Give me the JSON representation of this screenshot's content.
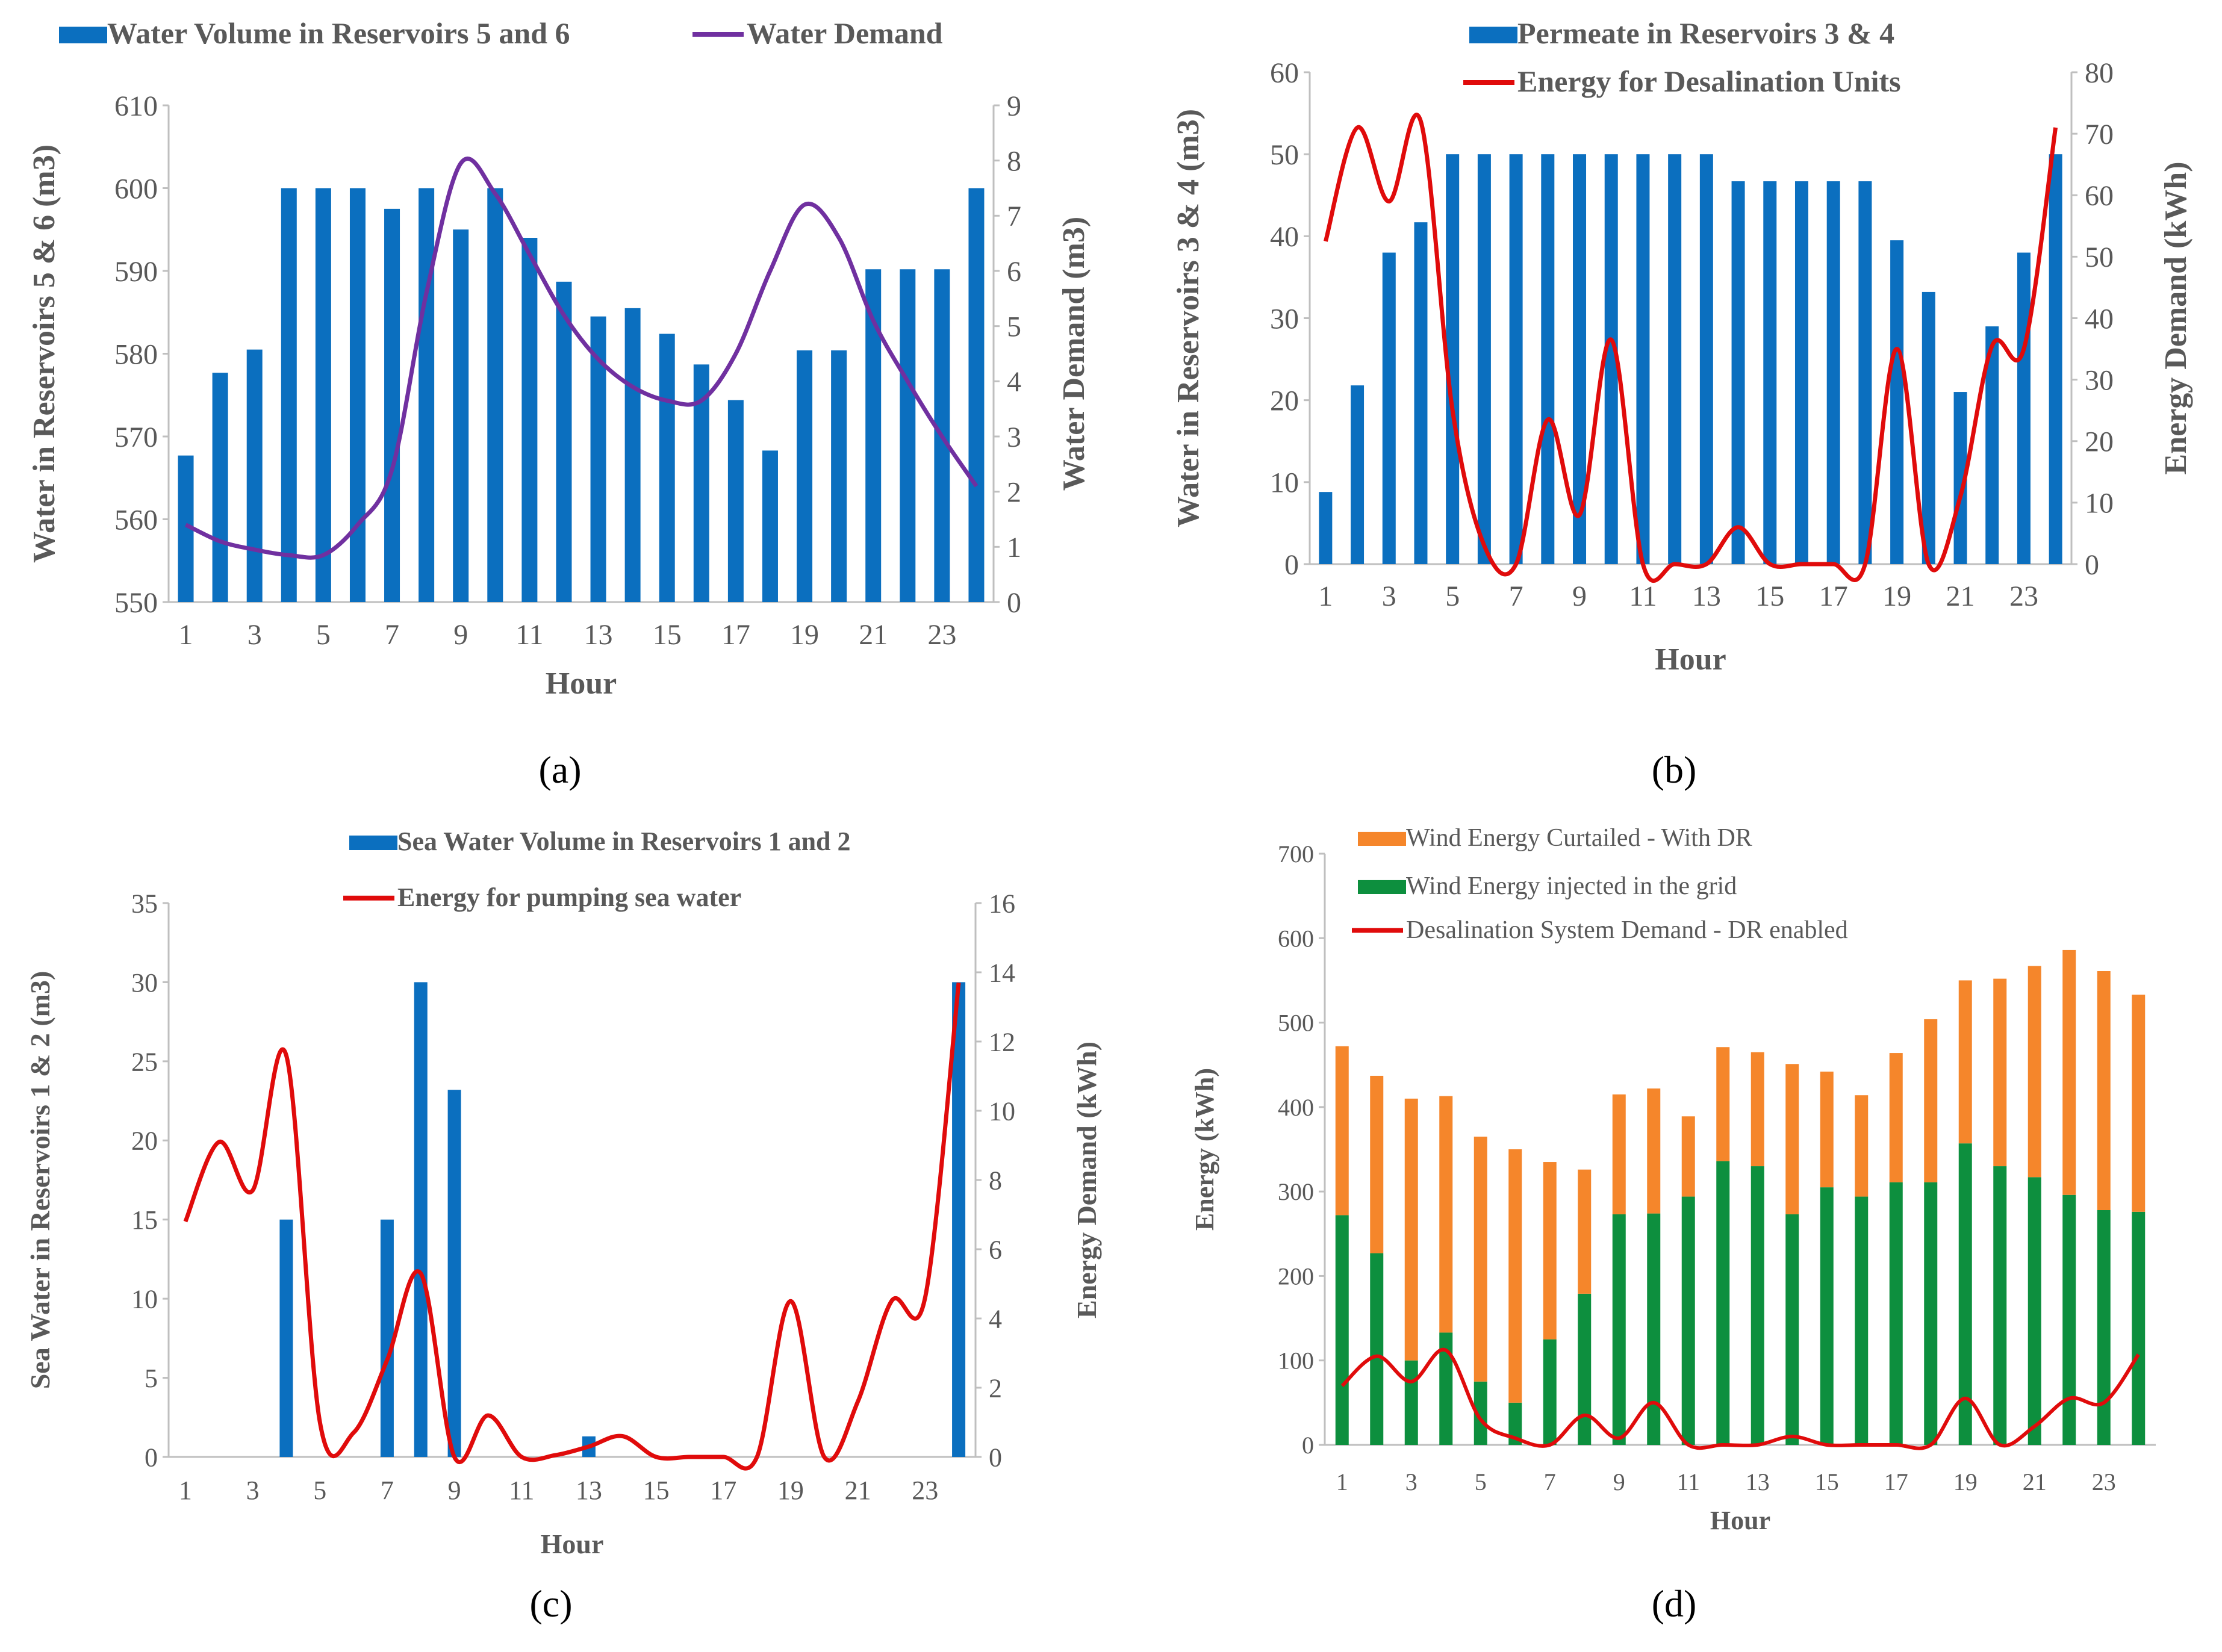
{
  "colors": {
    "blue": "#0b6fbf",
    "purple": "#7030a0",
    "red": "#e00b0b",
    "orange": "#f5862b",
    "green": "#0d8f3e",
    "axis": "#bfbfbf",
    "text": "#595959",
    "caption": "#000000"
  },
  "chart_data": [
    {
      "id": "a",
      "type": "bar+line",
      "caption": "(a)",
      "xlabel": "Hour",
      "ylabel": "Water in Reservoirs 5 & 6 (m3)",
      "y2label": "Water Demand (m3)",
      "ylim": [
        550,
        610
      ],
      "yticks": [
        550,
        560,
        570,
        580,
        590,
        600,
        610
      ],
      "y2lim": [
        0,
        9
      ],
      "y2ticks": [
        0,
        1,
        2,
        3,
        4,
        5,
        6,
        7,
        8,
        9
      ],
      "x": [
        1,
        2,
        3,
        4,
        5,
        6,
        7,
        8,
        9,
        10,
        11,
        12,
        13,
        14,
        15,
        16,
        17,
        18,
        19,
        20,
        21,
        22,
        23,
        24
      ],
      "xtick_labels": [
        "1",
        "3",
        "5",
        "7",
        "9",
        "11",
        "13",
        "15",
        "17",
        "19",
        "21",
        "23"
      ],
      "series": [
        {
          "name": "Water Volume in Reservoirs 5 and 6",
          "kind": "bar",
          "axis": "left",
          "values": [
            567.7,
            577.7,
            580.5,
            600,
            600,
            600,
            597.5,
            600,
            595,
            600,
            594,
            588.7,
            584.5,
            585.5,
            582.4,
            578.7,
            574.4,
            568.3,
            580.4,
            580.4,
            590.2,
            590.2,
            590.2,
            600
          ]
        },
        {
          "name": "Water Demand",
          "kind": "line",
          "axis": "right",
          "values": [
            1.4,
            1.1,
            0.95,
            0.85,
            0.85,
            1.4,
            2.4,
            5.6,
            7.95,
            7.4,
            6.3,
            5.2,
            4.4,
            3.9,
            3.65,
            3.65,
            4.5,
            6.0,
            7.2,
            6.6,
            5.1,
            4.0,
            3.0,
            2.1
          ]
        }
      ]
    },
    {
      "id": "b",
      "type": "bar+line",
      "caption": "(b)",
      "xlabel": "Hour",
      "ylabel": "Water in Reservoirs 3 & 4 (m3)",
      "y2label": "Energy Demand (kWh)",
      "ylim": [
        0,
        60
      ],
      "yticks": [
        0,
        10,
        20,
        30,
        40,
        50,
        60
      ],
      "y2lim": [
        0,
        80
      ],
      "y2ticks": [
        0,
        10,
        20,
        30,
        40,
        50,
        60,
        70,
        80
      ],
      "x": [
        1,
        2,
        3,
        4,
        5,
        6,
        7,
        8,
        9,
        10,
        11,
        12,
        13,
        14,
        15,
        16,
        17,
        18,
        19,
        20,
        21,
        22,
        23,
        24
      ],
      "xtick_labels": [
        "1",
        "3",
        "5",
        "7",
        "9",
        "11",
        "13",
        "15",
        "17",
        "19",
        "21",
        "23"
      ],
      "series": [
        {
          "name": "Permeate in Reservoirs 3 & 4",
          "kind": "bar",
          "axis": "left",
          "values": [
            8.8,
            21.8,
            38,
            41.7,
            50,
            50,
            50,
            50,
            50,
            50,
            50,
            50,
            50,
            46.7,
            46.7,
            46.7,
            46.7,
            46.7,
            39.5,
            33.2,
            21,
            29,
            38,
            50
          ]
        },
        {
          "name": "Energy for Desalination Units",
          "kind": "line",
          "axis": "right",
          "values": [
            52.5,
            71,
            59,
            72,
            25,
            3,
            0,
            23.5,
            8,
            36.5,
            0,
            0,
            0,
            6,
            0,
            0,
            0,
            0,
            35,
            0,
            11,
            35.5,
            35,
            71
          ]
        }
      ]
    },
    {
      "id": "c",
      "type": "bar+line",
      "caption": "(c)",
      "xlabel": "Hour",
      "ylabel": "Sea Water in Reservoirs 1 & 2 (m3)",
      "y2label": "Energy Demand (kWh)",
      "ylim": [
        0,
        35
      ],
      "yticks": [
        0,
        5,
        10,
        15,
        20,
        25,
        30,
        35
      ],
      "y2lim": [
        0,
        16
      ],
      "y2ticks": [
        0,
        2,
        4,
        6,
        8,
        10,
        12,
        14,
        16
      ],
      "x": [
        1,
        2,
        3,
        4,
        5,
        6,
        7,
        8,
        9,
        10,
        11,
        12,
        13,
        14,
        15,
        16,
        17,
        18,
        19,
        20,
        21,
        22,
        23,
        24
      ],
      "xtick_labels": [
        "1",
        "3",
        "5",
        "7",
        "9",
        "11",
        "13",
        "15",
        "17",
        "19",
        "21",
        "23"
      ],
      "series": [
        {
          "name": "Sea Water Volume in Reservoirs 1 and 2",
          "kind": "bar",
          "axis": "left",
          "values": [
            0,
            0,
            0,
            15,
            0,
            0,
            15,
            30,
            23.2,
            0,
            0,
            0,
            1.3,
            0,
            0,
            0,
            0,
            0,
            0,
            0,
            0,
            0,
            0,
            30
          ]
        },
        {
          "name": "Energy for pumping sea water",
          "kind": "line",
          "axis": "right",
          "values": [
            6.8,
            9.1,
            7.7,
            11.6,
            1.0,
            0.7,
            2.8,
            5.3,
            0,
            1.2,
            0,
            0.05,
            0.3,
            0.6,
            0,
            0,
            0,
            0,
            4.5,
            0,
            1.6,
            4.5,
            4.6,
            13.7
          ]
        }
      ]
    },
    {
      "id": "d",
      "type": "stacked-bar+line",
      "caption": "(d)",
      "xlabel": "Hour",
      "ylabel": "Energy (kWh)",
      "ylim": [
        0,
        700
      ],
      "yticks": [
        0,
        100,
        200,
        300,
        400,
        500,
        600,
        700
      ],
      "x": [
        1,
        2,
        3,
        4,
        5,
        6,
        7,
        8,
        9,
        10,
        11,
        12,
        13,
        14,
        15,
        16,
        17,
        18,
        19,
        20,
        21,
        22,
        23,
        24
      ],
      "xtick_labels": [
        "1",
        "3",
        "5",
        "7",
        "9",
        "11",
        "13",
        "15",
        "17",
        "19",
        "21",
        "23"
      ],
      "series": [
        {
          "name": "Wind Energy Curtailed - With DR",
          "kind": "stack-top",
          "values": [
            200,
            210,
            310,
            280,
            290,
            300,
            210,
            147,
            142,
            148,
            95,
            135,
            135,
            178,
            137,
            120,
            153,
            193,
            193,
            222,
            250,
            290,
            283,
            257
          ]
        },
        {
          "name": "Wind Energy injected in the grid",
          "kind": "stack-base",
          "values": [
            272,
            227,
            100,
            133,
            75,
            50,
            125,
            179,
            273,
            274,
            294,
            336,
            330,
            273,
            305,
            294,
            311,
            311,
            357,
            330,
            317,
            296,
            278,
            276
          ]
        },
        {
          "name": "Desalination System Demand - DR enabled",
          "kind": "line",
          "values": [
            70,
            105,
            75,
            112,
            30,
            8,
            0,
            35,
            8,
            50,
            0,
            0,
            0,
            10,
            0,
            0,
            0,
            0,
            55,
            0,
            22,
            55,
            50,
            107
          ]
        }
      ]
    }
  ]
}
